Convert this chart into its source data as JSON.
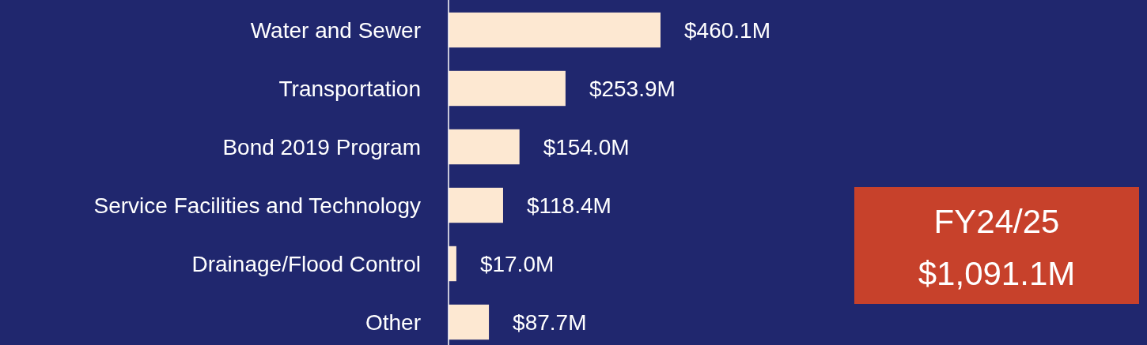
{
  "chart_data": {
    "type": "bar",
    "orientation": "horizontal",
    "categories": [
      "Water and Sewer",
      "Transportation",
      "Bond 2019 Program",
      "Service Facilities and Technology",
      "Drainage/Flood Control",
      "Other"
    ],
    "values": [
      460.1,
      253.9,
      154.0,
      118.4,
      17.0,
      87.7
    ],
    "value_labels": [
      "$460.1M",
      "$253.9M",
      "$154.0M",
      "$118.4M",
      "$17.0M",
      "$87.7M"
    ],
    "color": "#fde8d2",
    "annotations": [
      "FY24/25",
      "$1,091.1M"
    ]
  }
}
